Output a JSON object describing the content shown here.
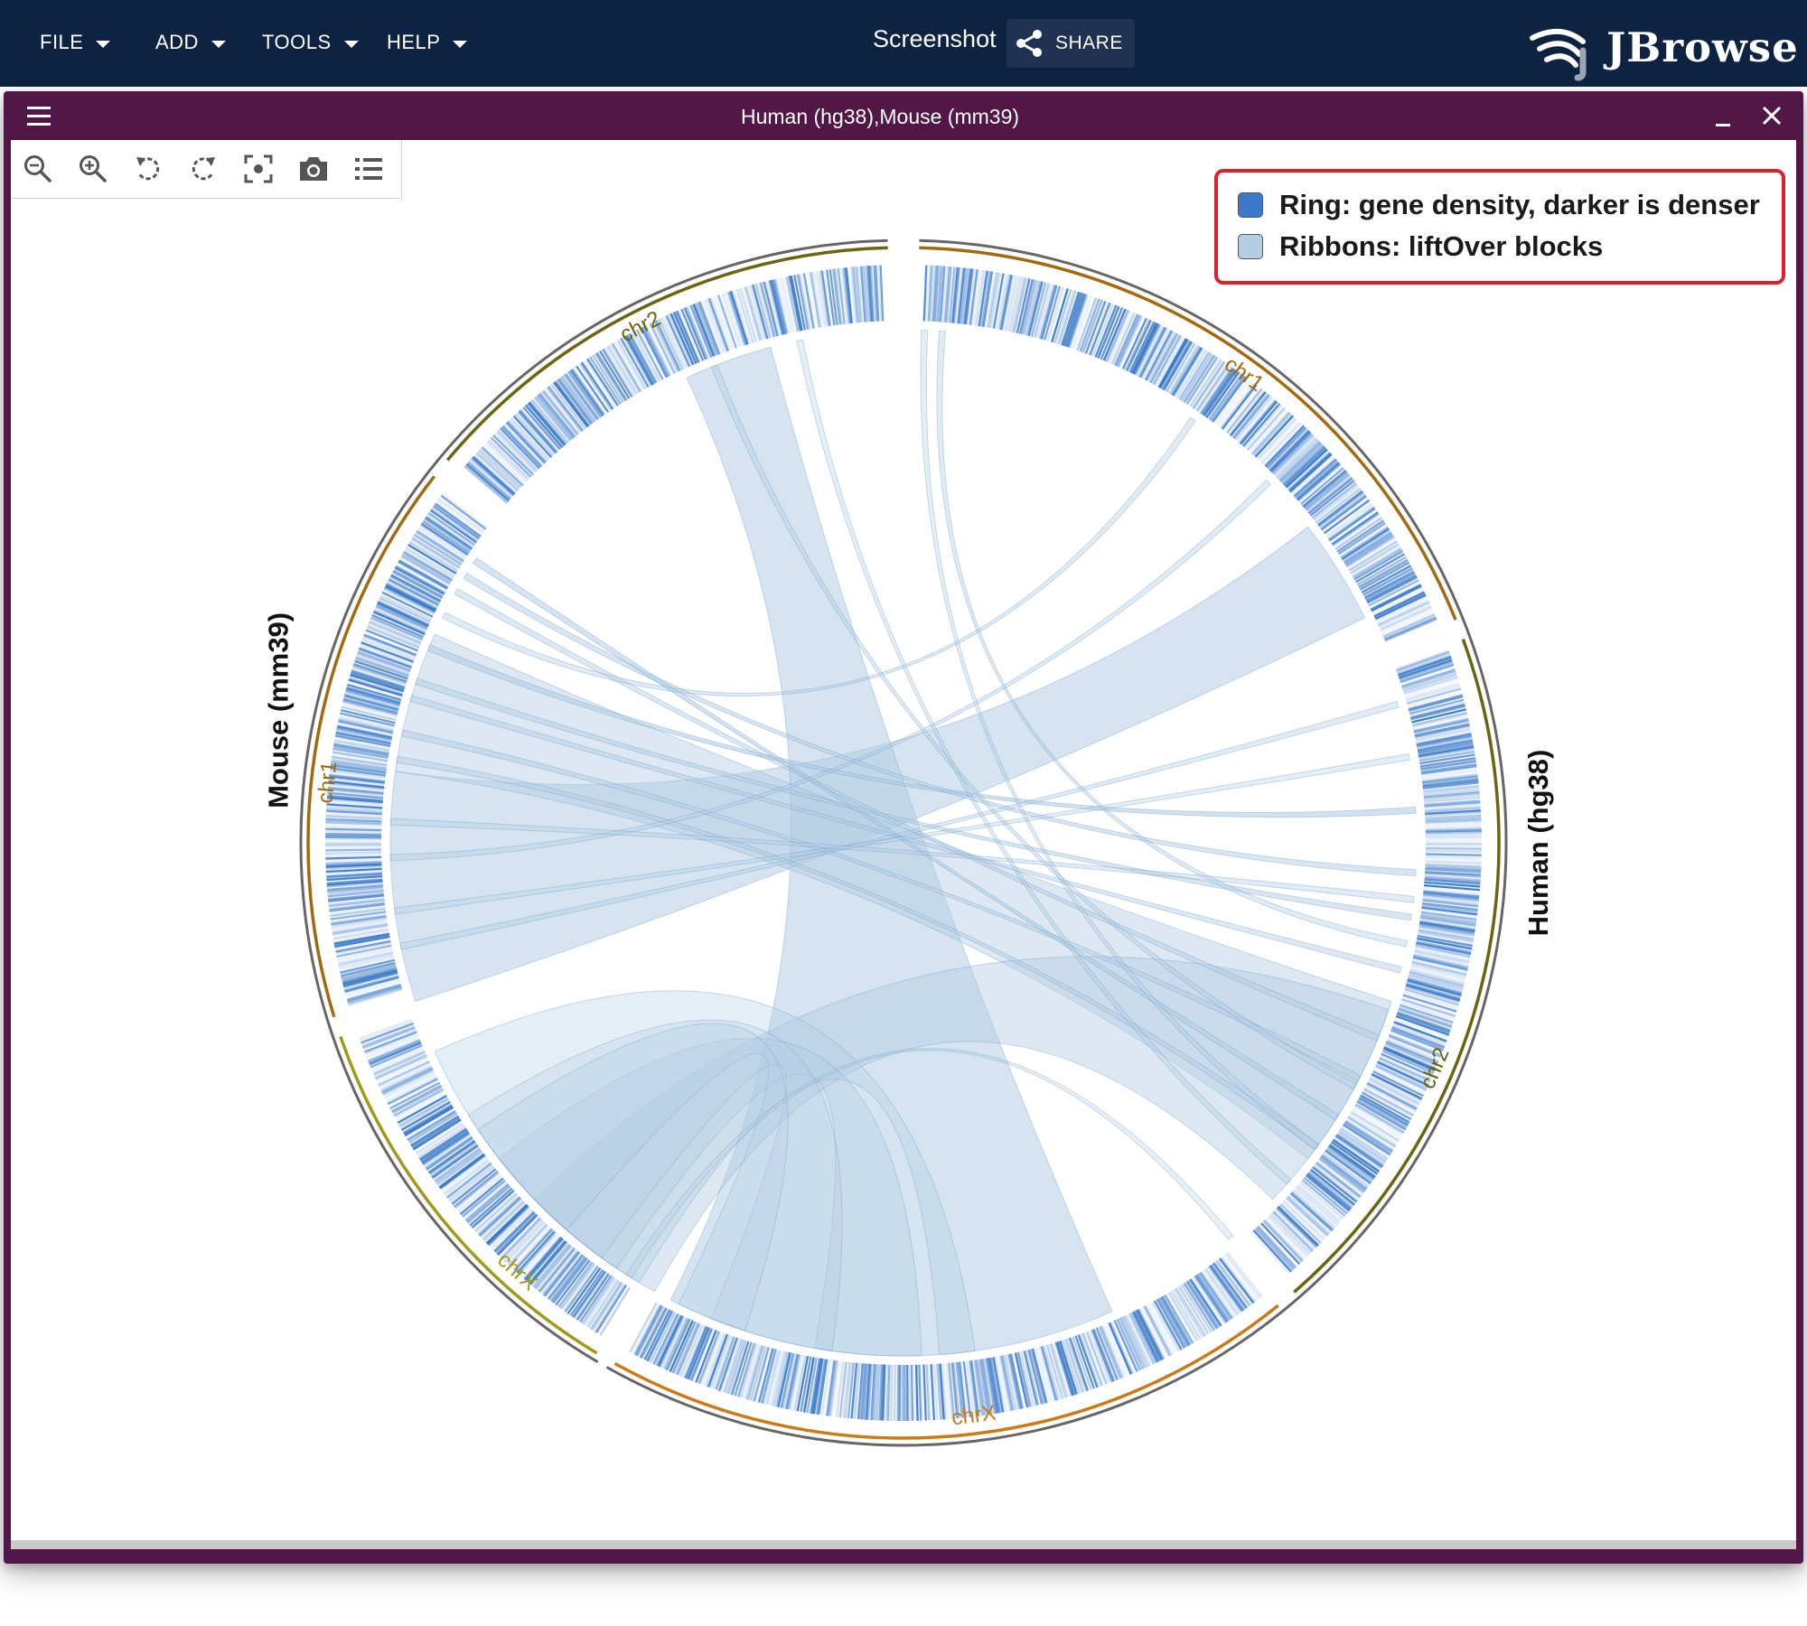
{
  "app": {
    "menus": [
      "FILE",
      "ADD",
      "TOOLS",
      "HELP"
    ],
    "session_name": "Screenshot",
    "share_label": "SHARE",
    "logo_text": "JBrowse"
  },
  "view": {
    "title": "Human (hg38),Mouse (mm39)",
    "toolbar": [
      "zoom-out-icon",
      "zoom-in-icon",
      "rotate-left-icon",
      "rotate-right-icon",
      "center-focus-icon",
      "camera-icon",
      "list-icon"
    ],
    "legend": {
      "ring_label": "Ring: gene density, darker is denser",
      "ribbon_label": "Ribbons: liftOver blocks",
      "ring_color": "#3b7ac9",
      "ribbon_color": "#b3cde3"
    }
  },
  "circos": {
    "assemblies": [
      {
        "name": "Human (hg38)",
        "chromosomes": [
          "chr1",
          "chr2",
          "chrX"
        ]
      },
      {
        "name": "Mouse (mm39)",
        "chromosomes": [
          "chrX",
          "chr1",
          "chr2"
        ]
      }
    ],
    "colors": {
      "chr1": "#a26a0f",
      "chr2": "#6b6410",
      "chrX_human": "#cc7a18",
      "chrX_mouse": "#9e9b1a",
      "ring": "#3b7ac9",
      "ribbon": "#b3cde3",
      "assembly_arc": "#666666"
    }
  }
}
